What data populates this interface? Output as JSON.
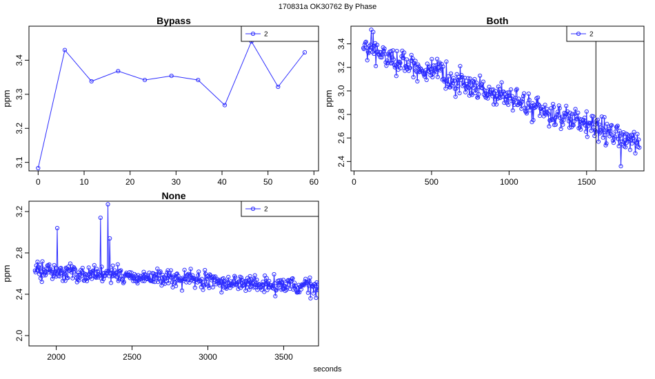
{
  "title": "170831a    OK30762   By Phase",
  "xlabel": "seconds",
  "chart_data": [
    {
      "type": "line",
      "title": "Bypass",
      "ylabel": "ppm",
      "xlim": [
        -2,
        61
      ],
      "ylim": [
        3.075,
        3.5
      ],
      "xticks": [
        0,
        10,
        20,
        30,
        40,
        50,
        60
      ],
      "yticks": [
        3.1,
        3.2,
        3.3,
        3.4
      ],
      "legend": "top-right",
      "series_color": "#2b2bff",
      "series": [
        {
          "name": "2",
          "x": [
            0,
            5.8,
            11.6,
            17.4,
            23.2,
            29,
            34.8,
            40.6,
            46.4,
            52.2,
            58
          ],
          "y": [
            3.083,
            3.43,
            3.338,
            3.368,
            3.342,
            3.354,
            3.342,
            3.268,
            3.455,
            3.322,
            3.423
          ]
        }
      ]
    },
    {
      "type": "line",
      "title": "Both",
      "ylabel": "ppm",
      "xlim": [
        -20,
        1870
      ],
      "ylim": [
        2.32,
        3.55
      ],
      "xticks": [
        0,
        500,
        1000,
        1500
      ],
      "yticks": [
        2.4,
        2.6,
        2.8,
        3.0,
        3.2,
        3.4
      ],
      "legend": "top-right",
      "series_color": "#2b2bff",
      "vline_x": 1560,
      "series": [
        {
          "name": "2",
          "x_start": 60,
          "x_end": 1840,
          "n": 420,
          "y_start": 3.36,
          "y_end": 2.55,
          "noise": 0.11,
          "peaks": [
            [
              110,
              3.52
            ],
            [
              125,
              3.5
            ],
            [
              1720,
              2.36
            ]
          ]
        }
      ]
    },
    {
      "type": "line",
      "title": "None",
      "ylabel": "ppm",
      "xlim": [
        1820,
        3730
      ],
      "ylim": [
        1.9,
        3.3
      ],
      "xticks": [
        2000,
        2500,
        3000,
        3500
      ],
      "yticks": [
        2.0,
        2.4,
        2.8,
        3.2
      ],
      "legend": "top-right",
      "series_color": "#2b2bff",
      "series": [
        {
          "name": "2",
          "x_start": 1860,
          "x_end": 3730,
          "n": 460,
          "y_start": 2.63,
          "y_end": 2.46,
          "noise": 0.09,
          "peaks": [
            [
              2005,
              3.04
            ],
            [
              2290,
              3.14
            ],
            [
              2340,
              3.27
            ],
            [
              2355,
              2.94
            ]
          ]
        }
      ]
    }
  ]
}
